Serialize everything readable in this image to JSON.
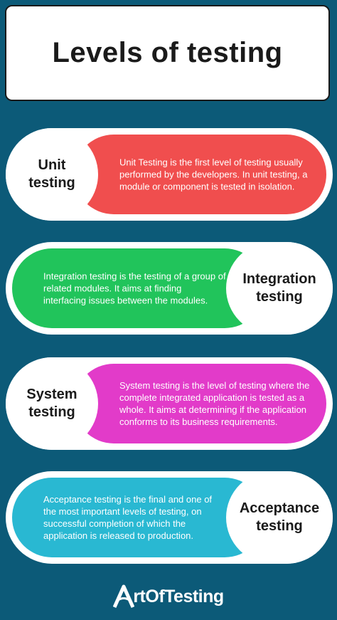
{
  "title": "Levels of testing",
  "colors": {
    "background": "#0c5a78",
    "unit": "#f04e4e",
    "integration": "#21c45b",
    "system": "#e23bc9",
    "acceptance": "#29b8d2"
  },
  "levels": [
    {
      "name": "Unit\ntesting",
      "description": "Unit Testing is the first level of testing usually performed by the developers. In unit testing, a module or component is tested in isolation."
    },
    {
      "name": "Integration\ntesting",
      "description": "Integration testing is the testing of a group of related modules. It aims at finding interfacing issues between the modules."
    },
    {
      "name": "System\ntesting",
      "description": "System testing is the level of testing where the complete integrated application is tested as a whole. It aims at determining if the application conforms to its business requirements."
    },
    {
      "name": "Acceptance\ntesting",
      "description": "Acceptance testing is the final and one of the most important levels of testing, on successful completion of which the application is released to production."
    }
  ],
  "logo": {
    "text": "rtOfTesting",
    "icon": "a-logo-icon"
  }
}
